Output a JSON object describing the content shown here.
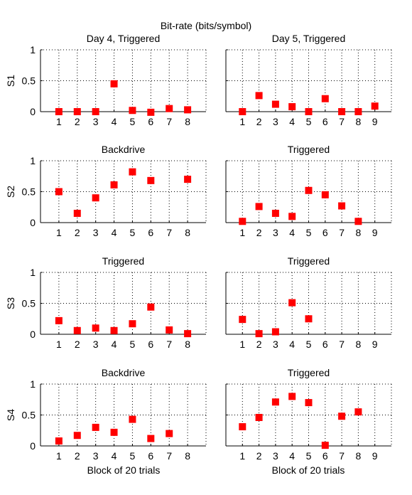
{
  "figure": {
    "suptitle": "Bit-rate (bits/symbol)",
    "xlabel": "Block of 20 trials",
    "marker_color": "#ff0000",
    "grid_color": "#000000"
  },
  "chart_data": [
    {
      "type": "scatter",
      "row": 0,
      "col": 0,
      "title": "Day 4, Triggered",
      "ylabel": "S1",
      "x": [
        1,
        2,
        3,
        4,
        5,
        6,
        7,
        8
      ],
      "y": [
        0.0,
        0.0,
        0.0,
        0.45,
        0.02,
        -0.01,
        0.05,
        0.03
      ],
      "xlim": [
        0,
        9
      ],
      "ylim": [
        0,
        1
      ],
      "xticks": [
        "1",
        "2",
        "3",
        "4",
        "5",
        "6",
        "7",
        "8"
      ],
      "yticks": [
        "0",
        "0.5",
        "1"
      ],
      "grid": true
    },
    {
      "type": "scatter",
      "row": 0,
      "col": 1,
      "title": "Day 5, Triggered",
      "ylabel": "",
      "x": [
        1,
        2,
        3,
        4,
        5,
        6,
        7,
        8,
        9
      ],
      "y": [
        0.0,
        0.26,
        0.12,
        0.08,
        0.0,
        0.21,
        0.0,
        0.0,
        0.09
      ],
      "xlim": [
        0,
        10
      ],
      "ylim": [
        0,
        1
      ],
      "xticks": [
        "1",
        "2",
        "3",
        "4",
        "5",
        "6",
        "7",
        "8",
        "9"
      ],
      "yticks": [
        "",
        "",
        ""
      ],
      "grid": true
    },
    {
      "type": "scatter",
      "row": 1,
      "col": 0,
      "title": "Backdrive",
      "ylabel": "S2",
      "x": [
        1,
        2,
        3,
        4,
        5,
        6,
        8
      ],
      "y": [
        0.5,
        0.15,
        0.4,
        0.61,
        0.82,
        0.68,
        0.7
      ],
      "xlim": [
        0,
        9
      ],
      "ylim": [
        0,
        1
      ],
      "xticks": [
        "1",
        "2",
        "3",
        "4",
        "5",
        "6",
        "7",
        "8"
      ],
      "yticks": [
        "0",
        "0.5",
        "1"
      ],
      "grid": true
    },
    {
      "type": "scatter",
      "row": 1,
      "col": 1,
      "title": "Triggered",
      "ylabel": "",
      "x": [
        1,
        2,
        3,
        4,
        5,
        6,
        7,
        8
      ],
      "y": [
        0.02,
        0.26,
        0.15,
        0.1,
        0.52,
        0.45,
        0.27,
        0.02
      ],
      "xlim": [
        0,
        10
      ],
      "ylim": [
        0,
        1
      ],
      "xticks": [
        "1",
        "2",
        "3",
        "4",
        "5",
        "6",
        "7",
        "8",
        "9"
      ],
      "yticks": [
        "",
        "",
        ""
      ],
      "grid": true
    },
    {
      "type": "scatter",
      "row": 2,
      "col": 0,
      "title": "Triggered",
      "ylabel": "S3",
      "x": [
        1,
        2,
        3,
        4,
        5,
        6,
        7,
        8
      ],
      "y": [
        0.22,
        0.06,
        0.1,
        0.06,
        0.17,
        0.44,
        0.07,
        0.01
      ],
      "xlim": [
        0,
        9
      ],
      "ylim": [
        0,
        1
      ],
      "xticks": [
        "1",
        "2",
        "3",
        "4",
        "5",
        "6",
        "7",
        "8"
      ],
      "yticks": [
        "0",
        "0.5",
        "1"
      ],
      "grid": true
    },
    {
      "type": "scatter",
      "row": 2,
      "col": 1,
      "title": "Triggered",
      "ylabel": "",
      "x": [
        1,
        2,
        3,
        4,
        5
      ],
      "y": [
        0.24,
        0.01,
        0.04,
        0.51,
        0.25
      ],
      "xlim": [
        0,
        10
      ],
      "ylim": [
        0,
        1
      ],
      "xticks": [
        "1",
        "2",
        "3",
        "4",
        "5",
        "6",
        "7",
        "8",
        "9"
      ],
      "yticks": [
        "",
        "",
        ""
      ],
      "grid": true
    },
    {
      "type": "scatter",
      "row": 3,
      "col": 0,
      "title": "Backdrive",
      "ylabel": "S4",
      "x": [
        1,
        2,
        3,
        4,
        5,
        6,
        7
      ],
      "y": [
        0.08,
        0.17,
        0.3,
        0.22,
        0.43,
        0.12,
        0.2
      ],
      "xlim": [
        0,
        9
      ],
      "ylim": [
        0,
        1
      ],
      "xticks": [
        "1",
        "2",
        "3",
        "4",
        "5",
        "6",
        "7",
        "8"
      ],
      "yticks": [
        "0",
        "0.5",
        "1"
      ],
      "grid": true
    },
    {
      "type": "scatter",
      "row": 3,
      "col": 1,
      "title": "Triggered",
      "ylabel": "",
      "x": [
        1,
        2,
        3,
        4,
        5,
        6,
        7,
        8
      ],
      "y": [
        0.31,
        0.46,
        0.71,
        0.8,
        0.7,
        0.01,
        0.48,
        0.55
      ],
      "xlim": [
        0,
        10
      ],
      "ylim": [
        0,
        1
      ],
      "xticks": [
        "1",
        "2",
        "3",
        "4",
        "5",
        "6",
        "7",
        "8",
        "9"
      ],
      "yticks": [
        "",
        "",
        ""
      ],
      "grid": true
    }
  ]
}
